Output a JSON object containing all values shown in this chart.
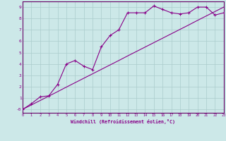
{
  "xlabel": "Windchill (Refroidissement éolien,°C)",
  "background_color": "#cce8e8",
  "grid_color": "#aacccc",
  "line_color": "#880088",
  "spine_color": "#660066",
  "x_data": [
    0,
    1,
    2,
    3,
    4,
    5,
    6,
    7,
    8,
    9,
    10,
    11,
    12,
    13,
    14,
    15,
    16,
    17,
    18,
    19,
    20,
    21,
    22,
    23
  ],
  "y_scatter": [
    0,
    0.5,
    1.1,
    1.2,
    2.2,
    4.0,
    4.3,
    3.8,
    3.5,
    5.5,
    6.5,
    7.0,
    8.5,
    8.5,
    8.5,
    9.1,
    8.8,
    8.5,
    8.4,
    8.5,
    9.0,
    9.0,
    8.3,
    8.5
  ],
  "y_linear": [
    0,
    0.39,
    0.78,
    1.17,
    1.56,
    1.96,
    2.35,
    2.74,
    3.13,
    3.52,
    3.91,
    4.3,
    4.7,
    5.09,
    5.48,
    5.87,
    6.26,
    6.65,
    7.04,
    7.43,
    7.83,
    8.22,
    8.61,
    9.0
  ],
  "xlim": [
    0,
    23
  ],
  "ylim": [
    -0.3,
    9.5
  ],
  "yticks": [
    0,
    1,
    2,
    3,
    4,
    5,
    6,
    7,
    8,
    9
  ],
  "ytick_labels": [
    "-0",
    "1",
    "2",
    "3",
    "4",
    "5",
    "6",
    "7",
    "8",
    "9"
  ],
  "xticks": [
    0,
    1,
    2,
    3,
    4,
    5,
    6,
    7,
    8,
    9,
    10,
    11,
    12,
    13,
    14,
    15,
    16,
    17,
    18,
    19,
    20,
    21,
    22,
    23
  ]
}
